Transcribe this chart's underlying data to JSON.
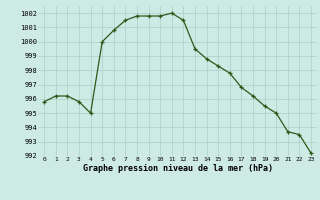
{
  "x": [
    0,
    1,
    2,
    3,
    4,
    5,
    6,
    7,
    8,
    9,
    10,
    11,
    12,
    13,
    14,
    15,
    16,
    17,
    18,
    19,
    20,
    21,
    22,
    23
  ],
  "y": [
    995.8,
    996.2,
    996.2,
    995.8,
    995.0,
    1000.0,
    1000.8,
    1001.5,
    1001.8,
    1001.8,
    1001.8,
    1002.0,
    1001.5,
    999.5,
    998.8,
    998.3,
    997.8,
    996.8,
    996.2,
    995.5,
    995.0,
    993.7,
    993.5,
    992.2
  ],
  "line_color": "#2d5a1b",
  "bg_color": "#ceeae4",
  "grid_color": "#aacfc8",
  "xlabel": "Graphe pression niveau de la mer (hPa)",
  "ylim": [
    992,
    1002.5
  ],
  "xlim": [
    -0.5,
    23.5
  ],
  "yticks": [
    992,
    993,
    994,
    995,
    996,
    997,
    998,
    999,
    1000,
    1001,
    1002
  ],
  "xtick_labels": [
    "0",
    "1",
    "2",
    "3",
    "4",
    "5",
    "6",
    "7",
    "8",
    "9",
    "10",
    "11",
    "12",
    "13",
    "14",
    "15",
    "16",
    "17",
    "18",
    "19",
    "20",
    "21",
    "22",
    "23"
  ]
}
